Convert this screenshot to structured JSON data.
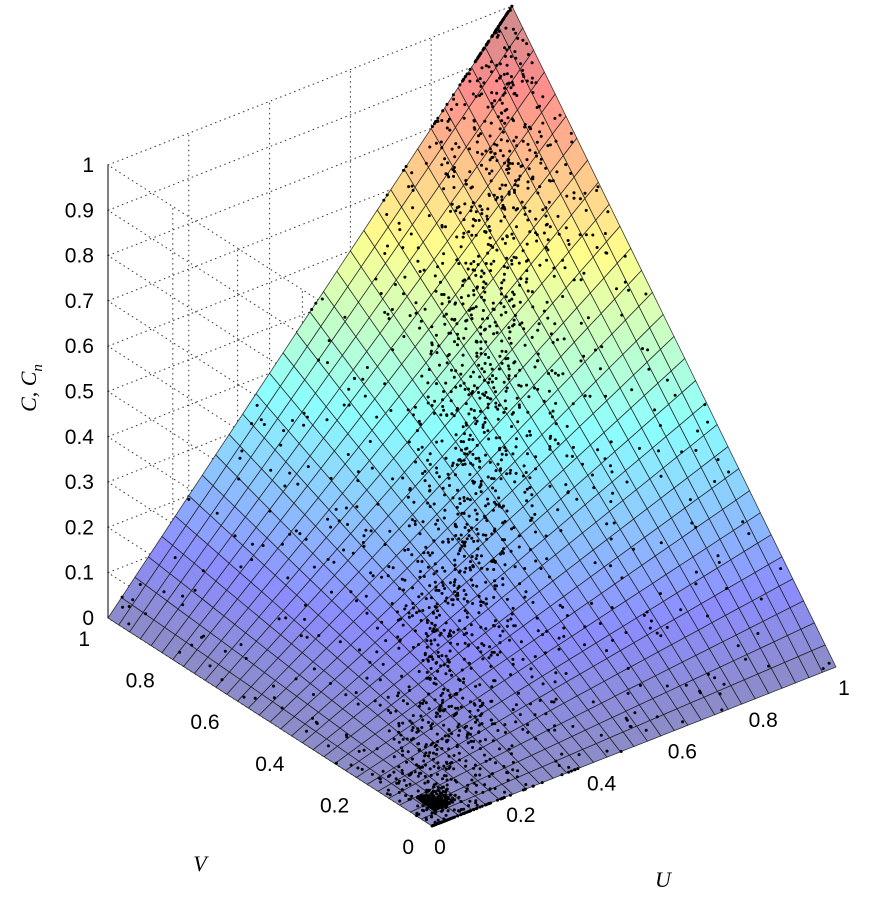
{
  "chart_data": {
    "type": "surface",
    "surface": {
      "function": "independence copula C(u,v) = u*v",
      "grid_resolution": 30,
      "colormap": "jet",
      "alpha": 0.45
    },
    "scatter": {
      "name": "",
      "marker_color": "#000000",
      "description_visible": "empirical copula sample points (U,V,Cn) lying on the surface"
    },
    "axes": {
      "x": {
        "label": "U",
        "range": [
          0,
          1
        ],
        "ticks": [
          "0",
          "0.2",
          "0.4",
          "0.6",
          "0.8",
          "1"
        ],
        "values": [
          0,
          0.2,
          0.4,
          0.6,
          0.8,
          1
        ]
      },
      "y": {
        "label": "V",
        "range": [
          0,
          1
        ],
        "ticks": [
          "0",
          "0.2",
          "0.4",
          "0.6",
          "0.8",
          "1"
        ],
        "values": [
          0,
          0.2,
          0.4,
          0.6,
          0.8,
          1
        ]
      },
      "z": {
        "label_main": "C, C",
        "label_sub": "n",
        "range": [
          0,
          1
        ],
        "ticks": [
          "0",
          "0.1",
          "0.2",
          "0.3",
          "0.4",
          "0.5",
          "0.6",
          "0.7",
          "0.8",
          "0.9",
          "1"
        ],
        "values": [
          0,
          0.1,
          0.2,
          0.3,
          0.4,
          0.5,
          0.6,
          0.7,
          0.8,
          0.9,
          1
        ]
      }
    },
    "grid": true,
    "box": false,
    "colors": {
      "grid": "#333333",
      "mesh": "#1a1a1a",
      "points": "#000000"
    }
  }
}
